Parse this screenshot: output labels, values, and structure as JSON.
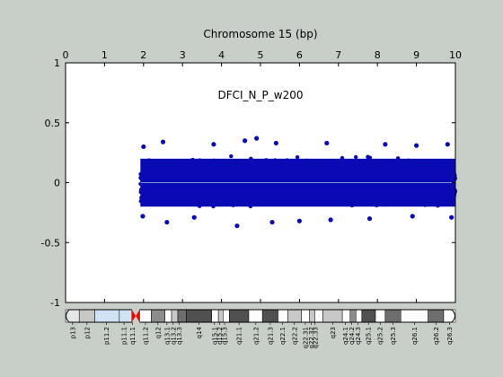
{
  "colors": {
    "background": "#c8cfc8",
    "plot_background": "#ffffff",
    "points": "#0a0ab4",
    "baseline": "#7f96d2",
    "centromere": "#ff0000"
  },
  "chart_data": {
    "type": "scatter",
    "title": "Chromosome 15 (bp)",
    "annotation": "DFCI_N_P_w200",
    "xlim": [
      0,
      10
    ],
    "ylim": [
      -1,
      1
    ],
    "x_ticks": [
      "0",
      "1",
      "2",
      "3",
      "4",
      "5",
      "6",
      "7",
      "8",
      "9",
      "10"
    ],
    "y_ticks": [
      "1",
      "0.5",
      "0",
      "-0.5",
      "-1"
    ],
    "x_tick_values": [
      0,
      1,
      2,
      3,
      4,
      5,
      6,
      7,
      8,
      9,
      10
    ],
    "y_tick_values": [
      1,
      0.5,
      0,
      -0.5,
      -1
    ],
    "series": [
      {
        "x_range": [
          1.92,
          10.0
        ],
        "dense_band_y": [
          -0.2,
          0.2
        ],
        "outliers": [
          [
            2.5,
            0.34
          ],
          [
            3.8,
            0.32
          ],
          [
            4.6,
            0.35
          ],
          [
            4.9,
            0.37
          ],
          [
            5.4,
            0.33
          ],
          [
            6.7,
            0.33
          ],
          [
            8.2,
            0.32
          ],
          [
            9.0,
            0.31
          ],
          [
            9.8,
            0.32
          ],
          [
            2.0,
            0.3
          ],
          [
            2.6,
            -0.33
          ],
          [
            4.4,
            -0.36
          ],
          [
            5.3,
            -0.33
          ],
          [
            6.8,
            -0.31
          ],
          [
            7.8,
            -0.3
          ],
          [
            8.9,
            -0.28
          ],
          [
            9.9,
            -0.29
          ],
          [
            3.3,
            -0.29
          ],
          [
            6.0,
            -0.32
          ],
          [
            1.98,
            -0.28
          ]
        ],
        "baseline_y": 0
      }
    ],
    "ideogram": {
      "bands": [
        {
          "label": "p13",
          "start": 0.0,
          "end": 0.35,
          "color": "#e6e6e6"
        },
        {
          "label": "p12",
          "start": 0.35,
          "end": 0.75,
          "color": "#c8c8c8"
        },
        {
          "label": "p11.2",
          "start": 0.75,
          "end": 1.38,
          "color": "#cfe3f5"
        },
        {
          "label": "p11.1",
          "start": 1.38,
          "end": 1.7,
          "color": "#cfe3f5"
        },
        {
          "label": "q11.1",
          "start": 1.7,
          "end": 1.9,
          "color": "#ff0000"
        },
        {
          "label": "q11.2",
          "start": 1.9,
          "end": 2.2,
          "color": "#ffffff"
        },
        {
          "label": "q12",
          "start": 2.2,
          "end": 2.55,
          "color": "#8c8c8c"
        },
        {
          "label": "q13.1",
          "start": 2.55,
          "end": 2.72,
          "color": "#ffffff"
        },
        {
          "label": "q13.2",
          "start": 2.72,
          "end": 2.88,
          "color": "#c8c8c8"
        },
        {
          "label": "q13.3",
          "start": 2.88,
          "end": 3.1,
          "color": "#6e6e6e"
        },
        {
          "label": "q14",
          "start": 3.1,
          "end": 3.75,
          "color": "#505050"
        },
        {
          "label": "q15.1",
          "start": 3.75,
          "end": 3.92,
          "color": "#ffffff"
        },
        {
          "label": "q15.2",
          "start": 3.92,
          "end": 4.04,
          "color": "#c8c8c8"
        },
        {
          "label": "q15.3",
          "start": 4.04,
          "end": 4.2,
          "color": "#ffffff"
        },
        {
          "label": "q21.1",
          "start": 4.2,
          "end": 4.7,
          "color": "#505050"
        },
        {
          "label": "q21.2",
          "start": 4.7,
          "end": 5.05,
          "color": "#ffffff"
        },
        {
          "label": "q21.3",
          "start": 5.05,
          "end": 5.45,
          "color": "#505050"
        },
        {
          "label": "q22.1",
          "start": 5.45,
          "end": 5.7,
          "color": "#ffffff"
        },
        {
          "label": "q22.2",
          "start": 5.7,
          "end": 6.05,
          "color": "#c8c8c8"
        },
        {
          "label": "q22.31",
          "start": 6.05,
          "end": 6.25,
          "color": "#ffffff"
        },
        {
          "label": "q22.32",
          "start": 6.25,
          "end": 6.4,
          "color": "#c8c8c8"
        },
        {
          "label": "q22.33",
          "start": 6.4,
          "end": 6.6,
          "color": "#ffffff"
        },
        {
          "label": "q23",
          "start": 6.6,
          "end": 7.1,
          "color": "#c8c8c8"
        },
        {
          "label": "q24.1",
          "start": 7.1,
          "end": 7.3,
          "color": "#ffffff"
        },
        {
          "label": "q24.2",
          "start": 7.3,
          "end": 7.45,
          "color": "#8c8c8c"
        },
        {
          "label": "q24.3",
          "start": 7.45,
          "end": 7.6,
          "color": "#ffffff"
        },
        {
          "label": "q25.1",
          "start": 7.6,
          "end": 7.95,
          "color": "#505050"
        },
        {
          "label": "q25.2",
          "start": 7.95,
          "end": 8.2,
          "color": "#ffffff"
        },
        {
          "label": "q25.3",
          "start": 8.2,
          "end": 8.6,
          "color": "#6e6e6e"
        },
        {
          "label": "q26.1",
          "start": 8.6,
          "end": 9.3,
          "color": "#ffffff"
        },
        {
          "label": "q26.2",
          "start": 9.3,
          "end": 9.7,
          "color": "#6e6e6e"
        },
        {
          "label": "q26.3",
          "start": 9.7,
          "end": 10.0,
          "color": "#ffffff"
        }
      ],
      "labels": [
        {
          "text": "p13",
          "pos": 0.18
        },
        {
          "text": "p12",
          "pos": 0.55
        },
        {
          "text": "p11.2",
          "pos": 1.05
        },
        {
          "text": "p11.1",
          "pos": 1.5
        },
        {
          "text": "q11.1",
          "pos": 1.72
        },
        {
          "text": "q11.2",
          "pos": 2.05
        },
        {
          "text": "q12",
          "pos": 2.37
        },
        {
          "text": "q13.1",
          "pos": 2.6
        },
        {
          "text": "q13.2",
          "pos": 2.76
        },
        {
          "text": "q13.3",
          "pos": 2.92
        },
        {
          "text": "q14",
          "pos": 3.42
        },
        {
          "text": "q15.1",
          "pos": 3.82
        },
        {
          "text": "q15.2",
          "pos": 3.95
        },
        {
          "text": "q15.3",
          "pos": 4.08
        },
        {
          "text": "q21.1",
          "pos": 4.45
        },
        {
          "text": "q21.2",
          "pos": 4.88
        },
        {
          "text": "q21.3",
          "pos": 5.25
        },
        {
          "text": "q22.1",
          "pos": 5.57
        },
        {
          "text": "q22.2",
          "pos": 5.87
        },
        {
          "text": "q22.31",
          "pos": 6.15
        },
        {
          "text": "q22.32",
          "pos": 6.3
        },
        {
          "text": "q22.33",
          "pos": 6.4
        },
        {
          "text": "q23",
          "pos": 6.85
        },
        {
          "text": "q24.1",
          "pos": 7.18
        },
        {
          "text": "q24.2",
          "pos": 7.34
        },
        {
          "text": "q24.3",
          "pos": 7.5
        },
        {
          "text": "q25.1",
          "pos": 7.77
        },
        {
          "text": "q25.2",
          "pos": 8.07
        },
        {
          "text": "q25.3",
          "pos": 8.4
        },
        {
          "text": "q26.1",
          "pos": 8.95
        },
        {
          "text": "q26.2",
          "pos": 9.5
        },
        {
          "text": "q26.3",
          "pos": 9.85
        }
      ]
    },
    "grid": false,
    "legend": "none"
  }
}
